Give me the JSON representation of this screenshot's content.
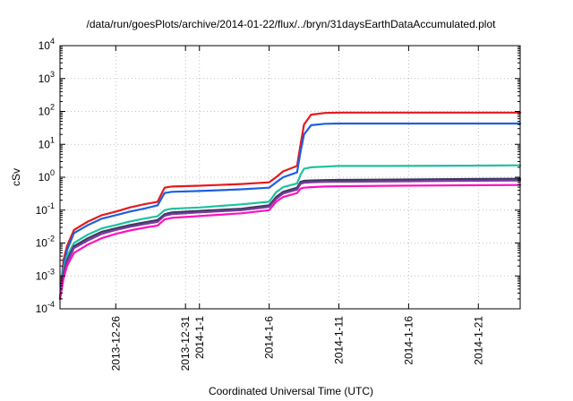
{
  "chart_data": {
    "type": "line",
    "title": "/data/run/goesPlots/archive/2014-01-22/flux/../bryn/31daysEarthDataAccumulated.plot",
    "xlabel": "Coordinated Universal Time (UTC)",
    "ylabel": "cSv",
    "yscale": "log",
    "ylim": [
      0.0001,
      10000
    ],
    "xlim": [
      "2013-12-22",
      "2014-01-24"
    ],
    "grid": true,
    "y_ticks": [
      {
        "value": 0.0001,
        "base": "10",
        "exp": "-4"
      },
      {
        "value": 0.001,
        "base": "10",
        "exp": "-3"
      },
      {
        "value": 0.01,
        "base": "10",
        "exp": "-2"
      },
      {
        "value": 0.1,
        "base": "10",
        "exp": "-1"
      },
      {
        "value": 1,
        "base": "10",
        "exp": "0"
      },
      {
        "value": 10,
        "base": "10",
        "exp": "1"
      },
      {
        "value": 100,
        "base": "10",
        "exp": "2"
      },
      {
        "value": 1000,
        "base": "10",
        "exp": "3"
      },
      {
        "value": 10000,
        "base": "10",
        "exp": "4"
      }
    ],
    "x_ticks": [
      {
        "date": "2013-12-26",
        "label": "2013-12-26"
      },
      {
        "date": "2013-12-31",
        "label": "2013-12-31"
      },
      {
        "date": "2014-01-01",
        "label": "2014-1-1"
      },
      {
        "date": "2014-01-06",
        "label": "2014-1-6"
      },
      {
        "date": "2014-01-11",
        "label": "2014-1-11"
      },
      {
        "date": "2014-01-16",
        "label": "2014-1-16"
      },
      {
        "date": "2014-01-21",
        "label": "2014-1-21"
      }
    ],
    "series": [
      {
        "color": "#e41a1c",
        "x": [
          "2013-12-22",
          "2013-12-22 06:00",
          "2013-12-22 12:00",
          "2013-12-23",
          "2013-12-24",
          "2013-12-25",
          "2013-12-26",
          "2013-12-27",
          "2013-12-28",
          "2013-12-29",
          "2013-12-29 12:00",
          "2013-12-30",
          "2014-01-01",
          "2014-01-04",
          "2014-01-06",
          "2014-01-06 12:00",
          "2014-01-07",
          "2014-01-08",
          "2014-01-08 06:00",
          "2014-01-08 12:00",
          "2014-01-09",
          "2014-01-10",
          "2014-01-11",
          "2014-01-15",
          "2014-01-20",
          "2014-01-24"
        ],
        "values": [
          0.0002,
          0.003,
          0.008,
          0.025,
          0.045,
          0.07,
          0.09,
          0.12,
          0.15,
          0.18,
          0.48,
          0.52,
          0.55,
          0.62,
          0.7,
          1.0,
          1.5,
          2.2,
          10,
          40,
          80,
          90,
          92,
          92,
          92,
          92
        ]
      },
      {
        "color": "#1f5fe0",
        "x": [
          "2013-12-22",
          "2013-12-22 06:00",
          "2013-12-22 12:00",
          "2013-12-23",
          "2013-12-24",
          "2013-12-25",
          "2013-12-26",
          "2013-12-27",
          "2013-12-28",
          "2013-12-29",
          "2013-12-29 12:00",
          "2013-12-30",
          "2014-01-01",
          "2014-01-04",
          "2014-01-06",
          "2014-01-06 12:00",
          "2014-01-07",
          "2014-01-08",
          "2014-01-08 06:00",
          "2014-01-08 12:00",
          "2014-01-09",
          "2014-01-10",
          "2014-01-11",
          "2014-01-15",
          "2014-01-20",
          "2014-01-24"
        ],
        "values": [
          0.0002,
          0.002,
          0.006,
          0.02,
          0.035,
          0.055,
          0.07,
          0.09,
          0.11,
          0.14,
          0.33,
          0.36,
          0.38,
          0.43,
          0.48,
          0.7,
          1.0,
          1.4,
          6,
          20,
          38,
          42,
          43,
          43,
          43,
          43
        ]
      },
      {
        "color": "#20c0a0",
        "x": [
          "2013-12-22",
          "2013-12-22 06:00",
          "2013-12-22 12:00",
          "2013-12-23",
          "2013-12-24",
          "2013-12-25",
          "2013-12-26",
          "2013-12-27",
          "2013-12-28",
          "2013-12-29",
          "2013-12-29 12:00",
          "2013-12-30",
          "2014-01-01",
          "2014-01-04",
          "2014-01-06",
          "2014-01-06 12:00",
          "2014-01-07",
          "2014-01-08",
          "2014-01-08 06:00",
          "2014-01-08 12:00",
          "2014-01-09",
          "2014-01-10",
          "2014-01-11",
          "2014-01-15",
          "2014-01-20",
          "2014-01-24"
        ],
        "values": [
          0.0002,
          0.0015,
          0.004,
          0.01,
          0.018,
          0.028,
          0.035,
          0.045,
          0.055,
          0.065,
          0.1,
          0.11,
          0.12,
          0.15,
          0.18,
          0.35,
          0.5,
          0.65,
          1.2,
          1.8,
          2.0,
          2.1,
          2.2,
          2.2,
          2.25,
          2.3
        ]
      },
      {
        "color": "#3a3a5c",
        "x": [
          "2013-12-22",
          "2013-12-22 06:00",
          "2013-12-22 12:00",
          "2013-12-23",
          "2013-12-24",
          "2013-12-25",
          "2013-12-26",
          "2013-12-27",
          "2013-12-28",
          "2013-12-29",
          "2013-12-29 12:00",
          "2013-12-30",
          "2014-01-01",
          "2014-01-04",
          "2014-01-06",
          "2014-01-06 12:00",
          "2014-01-07",
          "2014-01-08",
          "2014-01-08 06:00",
          "2014-01-08 12:00",
          "2014-01-09",
          "2014-01-10",
          "2014-01-11",
          "2014-01-15",
          "2014-01-20",
          "2014-01-24"
        ],
        "values": [
          0.0002,
          0.0012,
          0.003,
          0.008,
          0.014,
          0.022,
          0.028,
          0.035,
          0.042,
          0.05,
          0.075,
          0.085,
          0.095,
          0.11,
          0.14,
          0.25,
          0.36,
          0.48,
          0.72,
          0.78,
          0.8,
          0.82,
          0.83,
          0.85,
          0.88,
          0.9
        ]
      },
      {
        "color": "#7c3aa0",
        "x": [
          "2013-12-22",
          "2013-12-22 06:00",
          "2013-12-22 12:00",
          "2013-12-23",
          "2013-12-24",
          "2013-12-25",
          "2013-12-26",
          "2013-12-27",
          "2013-12-28",
          "2013-12-29",
          "2013-12-29 12:00",
          "2013-12-30",
          "2014-01-01",
          "2014-01-04",
          "2014-01-06",
          "2014-01-06 12:00",
          "2014-01-07",
          "2014-01-08",
          "2014-01-08 06:00",
          "2014-01-08 12:00",
          "2014-01-09",
          "2014-01-10",
          "2014-01-11",
          "2014-01-15",
          "2014-01-20",
          "2014-01-24"
        ],
        "values": [
          0.0002,
          0.001,
          0.0026,
          0.007,
          0.012,
          0.019,
          0.025,
          0.031,
          0.037,
          0.044,
          0.067,
          0.075,
          0.085,
          0.1,
          0.125,
          0.22,
          0.32,
          0.42,
          0.63,
          0.68,
          0.7,
          0.72,
          0.73,
          0.75,
          0.78,
          0.8
        ]
      },
      {
        "color": "#ff10c0",
        "x": [
          "2013-12-22",
          "2013-12-22 06:00",
          "2013-12-22 12:00",
          "2013-12-23",
          "2013-12-24",
          "2013-12-25",
          "2013-12-26",
          "2013-12-27",
          "2013-12-28",
          "2013-12-29",
          "2013-12-29 12:00",
          "2013-12-30",
          "2014-01-01",
          "2014-01-04",
          "2014-01-06",
          "2014-01-06 12:00",
          "2014-01-07",
          "2014-01-08",
          "2014-01-08 06:00",
          "2014-01-08 12:00",
          "2014-01-09",
          "2014-01-10",
          "2014-01-11",
          "2014-01-15",
          "2014-01-20",
          "2014-01-24"
        ],
        "values": [
          0.0002,
          0.0008,
          0.002,
          0.005,
          0.009,
          0.014,
          0.019,
          0.024,
          0.029,
          0.034,
          0.052,
          0.058,
          0.066,
          0.08,
          0.1,
          0.18,
          0.25,
          0.33,
          0.45,
          0.48,
          0.5,
          0.52,
          0.53,
          0.55,
          0.57,
          0.58
        ]
      }
    ]
  }
}
